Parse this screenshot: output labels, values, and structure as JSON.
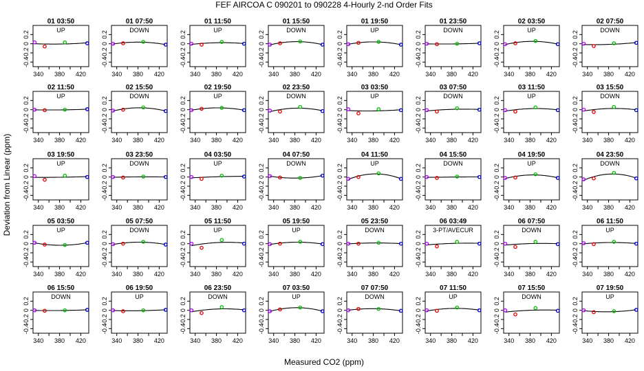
{
  "title": "FEF   AIRCOA C   090201 to 090228  4-Hourly 2-nd Order Fits",
  "ylabel": "Deviation from Linear (ppm)",
  "xlabel": "Measured CO2 (ppm)",
  "chart_data": {
    "type": "scatter",
    "grid_layout": "5 rows x 8 columns",
    "xlim": [
      330,
      435
    ],
    "ylim": [
      -0.5,
      0.4
    ],
    "xticks": [
      340,
      380,
      420
    ],
    "xtick_labels": [
      "340",
      "",
      "380",
      "",
      "420"
    ],
    "xticks_all": [
      340,
      360,
      380,
      400,
      420
    ],
    "yticks": [
      -0.4,
      -0.2,
      0.0,
      0.2
    ],
    "ytick_labels": [
      "-0.4",
      "-0.2",
      "0",
      "0.2"
    ],
    "standard_x": [
      333,
      352,
      390,
      432
    ],
    "point_colors": [
      "#b000ff",
      "#e00000",
      "#00c000",
      "#0000d0"
    ],
    "panels": [
      {
        "label": "01 03:50",
        "trend": "UP",
        "ys": [
          0.03,
          -0.06,
          0.03,
          0.01
        ]
      },
      {
        "label": "01 07:50",
        "trend": "DOWN",
        "ys": [
          0.0,
          0.01,
          0.04,
          -0.02
        ]
      },
      {
        "label": "01 11:50",
        "trend": "UP",
        "ys": [
          0.0,
          -0.02,
          0.04,
          0.0
        ]
      },
      {
        "label": "01 15:50",
        "trend": "DOWN",
        "ys": [
          -0.02,
          0.01,
          0.05,
          -0.02
        ]
      },
      {
        "label": "01 19:50",
        "trend": "UP",
        "ys": [
          -0.01,
          0.02,
          0.04,
          -0.02
        ]
      },
      {
        "label": "01 23:50",
        "trend": "DOWN",
        "ys": [
          0.0,
          -0.01,
          0.0,
          0.01
        ]
      },
      {
        "label": "02 03:50",
        "trend": "UP",
        "ys": [
          -0.01,
          0.01,
          0.06,
          -0.01
        ]
      },
      {
        "label": "02 07:50",
        "trend": "DOWN",
        "ys": [
          0.0,
          -0.05,
          0.01,
          0.02
        ]
      },
      {
        "label": "02 11:50",
        "trend": "UP",
        "ys": [
          0.0,
          -0.01,
          0.0,
          0.01
        ]
      },
      {
        "label": "02 15:50",
        "trend": "DOWN",
        "ys": [
          -0.02,
          0.0,
          0.05,
          -0.03
        ]
      },
      {
        "label": "02 19:50",
        "trend": "UP",
        "ys": [
          -0.01,
          0.02,
          0.04,
          -0.01
        ]
      },
      {
        "label": "02 23:50",
        "trend": "DOWN",
        "ys": [
          -0.02,
          -0.04,
          0.06,
          -0.03
        ]
      },
      {
        "label": "03 03:50",
        "trend": "UP",
        "ys": [
          0.01,
          -0.08,
          0.01,
          -0.01
        ]
      },
      {
        "label": "03 07:50",
        "trend": "DOWN",
        "ys": [
          -0.01,
          -0.04,
          0.03,
          0.0
        ]
      },
      {
        "label": "03 11:50",
        "trend": "UP",
        "ys": [
          -0.01,
          -0.04,
          0.05,
          -0.01
        ]
      },
      {
        "label": "03 15:50",
        "trend": "DOWN",
        "ys": [
          0.0,
          -0.05,
          0.06,
          -0.01
        ]
      },
      {
        "label": "03 19:50",
        "trend": "UP",
        "ys": [
          0.02,
          -0.06,
          0.03,
          0.0
        ]
      },
      {
        "label": "03 23:50",
        "trend": "DOWN",
        "ys": [
          0.0,
          -0.01,
          0.01,
          0.0
        ]
      },
      {
        "label": "04 03:50",
        "trend": "UP",
        "ys": [
          0.0,
          -0.04,
          0.03,
          0.01
        ]
      },
      {
        "label": "04 07:50",
        "trend": "DOWN",
        "ys": [
          0.02,
          -0.01,
          -0.02,
          0.03
        ]
      },
      {
        "label": "04 11:50",
        "trend": "UP",
        "ys": [
          -0.04,
          0.0,
          0.08,
          -0.04
        ]
      },
      {
        "label": "04 15:50",
        "trend": "DOWN",
        "ys": [
          0.0,
          -0.02,
          0.01,
          0.0
        ]
      },
      {
        "label": "04 19:50",
        "trend": "UP",
        "ys": [
          -0.02,
          -0.01,
          0.06,
          -0.02
        ]
      },
      {
        "label": "04 23:50",
        "trend": "DOWN",
        "ys": [
          -0.05,
          -0.03,
          0.09,
          -0.03
        ]
      },
      {
        "label": "05 03:50",
        "trend": "UP",
        "ys": [
          0.02,
          -0.02,
          -0.03,
          0.02
        ]
      },
      {
        "label": "05 07:50",
        "trend": "DOWN",
        "ys": [
          -0.01,
          0.0,
          0.04,
          -0.02
        ]
      },
      {
        "label": "05 11:50",
        "trend": "UP",
        "ys": [
          0.0,
          -0.09,
          0.08,
          0.0
        ]
      },
      {
        "label": "05 19:50",
        "trend": "UP",
        "ys": [
          -0.01,
          0.0,
          0.04,
          -0.01
        ]
      },
      {
        "label": "05 23:50",
        "trend": "DOWN",
        "ys": [
          0.0,
          0.0,
          0.02,
          0.0
        ]
      },
      {
        "label": "06 03:49",
        "trend": "3-PT/AVECUR",
        "ys": [
          0.0,
          -0.06,
          0.04,
          0.0
        ]
      },
      {
        "label": "06 07:50",
        "trend": "DOWN",
        "ys": [
          0.0,
          -0.07,
          0.04,
          -0.01
        ]
      },
      {
        "label": "06 11:50",
        "trend": "UP",
        "ys": [
          0.01,
          -0.01,
          0.04,
          0.0
        ]
      },
      {
        "label": "06 15:50",
        "trend": "DOWN",
        "ys": [
          0.0,
          -0.01,
          0.0,
          0.01
        ]
      },
      {
        "label": "06 19:50",
        "trend": "UP",
        "ys": [
          0.0,
          -0.02,
          0.0,
          0.01
        ]
      },
      {
        "label": "06 23:50",
        "trend": "DOWN",
        "ys": [
          0.0,
          -0.06,
          0.07,
          0.0
        ]
      },
      {
        "label": "07 03:50",
        "trend": "UP",
        "ys": [
          -0.02,
          0.02,
          0.06,
          -0.02
        ]
      },
      {
        "label": "07 07:50",
        "trend": "DOWN",
        "ys": [
          0.0,
          0.03,
          0.03,
          -0.01
        ]
      },
      {
        "label": "07 11:50",
        "trend": "UP",
        "ys": [
          0.0,
          -0.01,
          0.06,
          0.0
        ]
      },
      {
        "label": "07 15:50",
        "trend": "DOWN",
        "ys": [
          0.0,
          -0.09,
          0.05,
          -0.01
        ]
      },
      {
        "label": "07 19:50",
        "trend": "UP",
        "ys": [
          0.0,
          -0.04,
          -0.02,
          0.01
        ]
      }
    ]
  }
}
